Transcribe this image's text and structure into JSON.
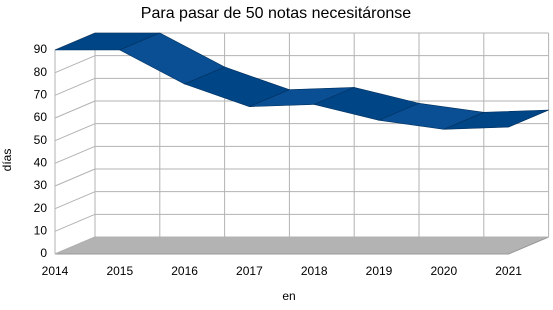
{
  "chart_data": {
    "type": "line3d",
    "title": "Para pasar de 50 notas necesitáronse",
    "x_label": "en",
    "y_label": "días",
    "categories": [
      "2014",
      "2015",
      "2016",
      "2017",
      "2018",
      "2019",
      "2020",
      "2021"
    ],
    "values": [
      90,
      90,
      75,
      65,
      66,
      59,
      55,
      56
    ],
    "color": "#004586",
    "ylim": [
      0,
      90
    ],
    "yticks": [
      0,
      10,
      20,
      30,
      40,
      50,
      60,
      70,
      80,
      90
    ],
    "grid": true
  }
}
